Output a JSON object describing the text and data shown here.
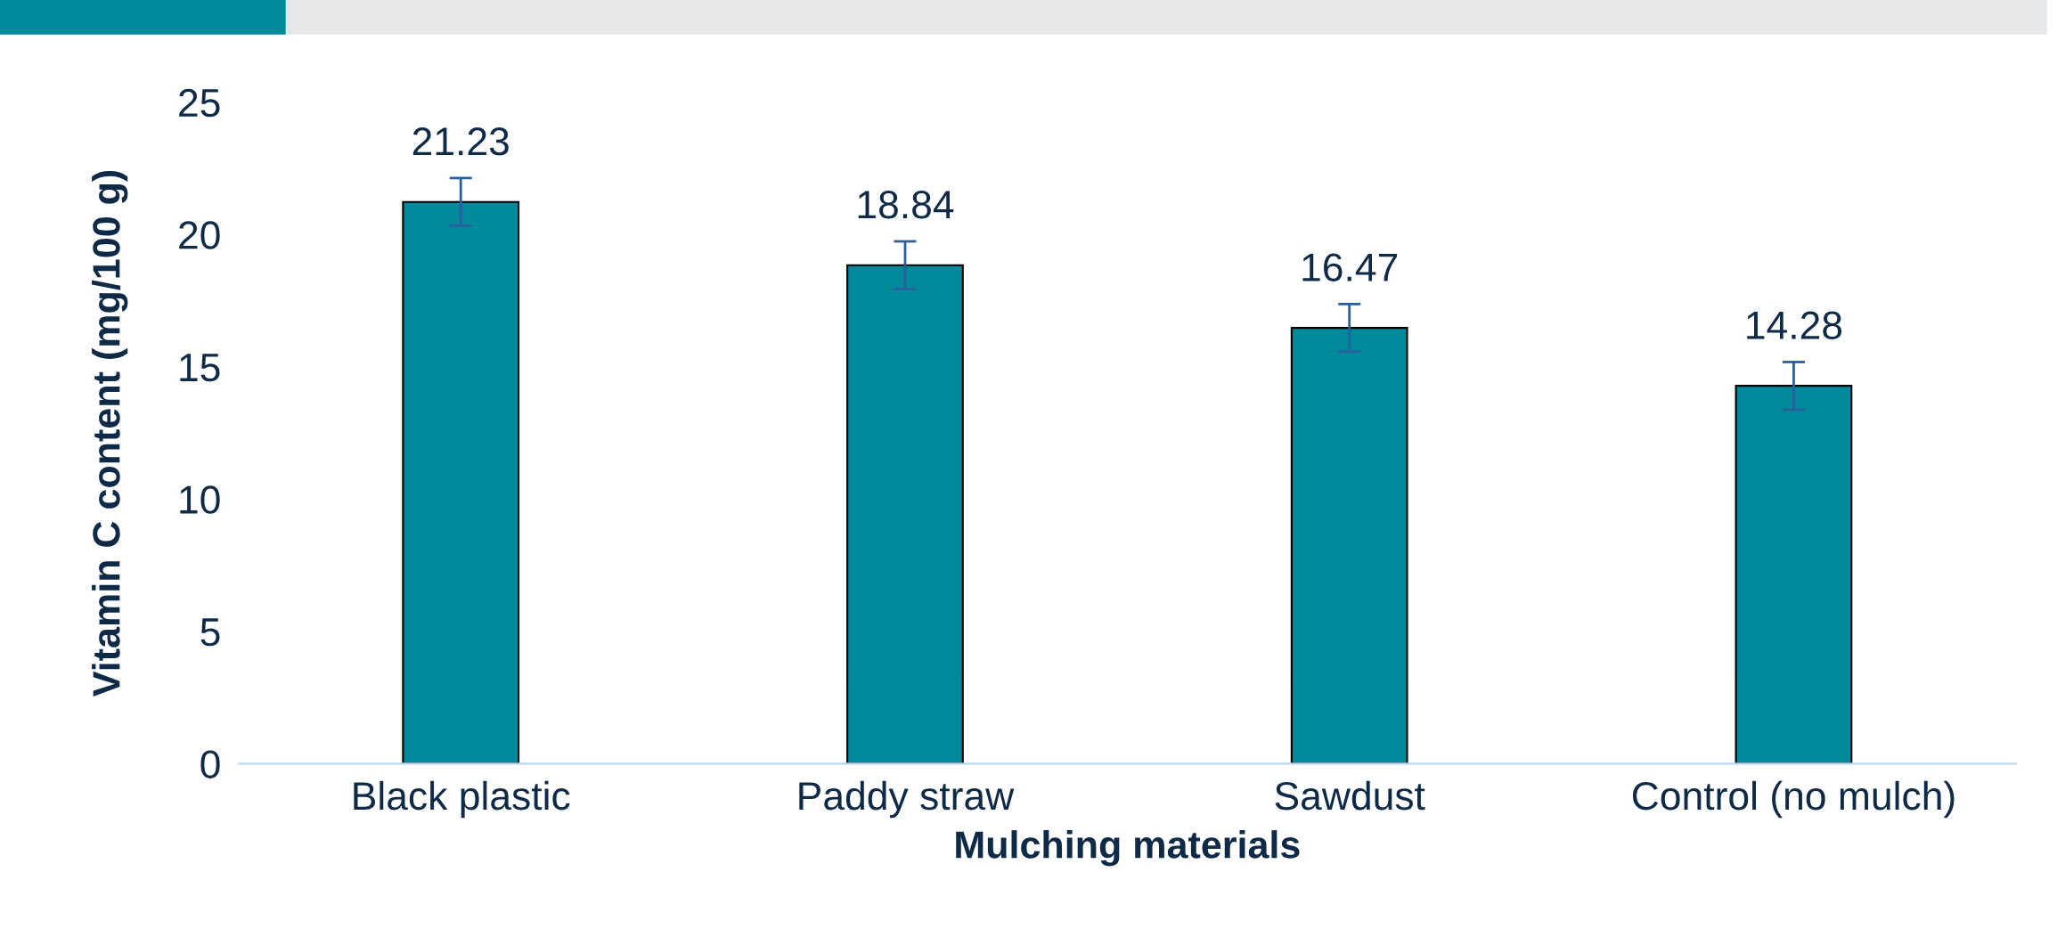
{
  "chart_data": {
    "type": "bar",
    "xlabel": "Mulching materials",
    "ylabel": "Vitamin C content (mg/100 g)",
    "categories": [
      "Black plastic",
      "Paddy straw",
      "Sawdust",
      "Control (no mulch)"
    ],
    "values": [
      21.23,
      18.84,
      16.47,
      14.28
    ],
    "errors": [
      0.9,
      0.9,
      0.9,
      0.9
    ],
    "color": "#00889b",
    "ylim": [
      0,
      25
    ],
    "yticks": [
      0,
      5,
      10,
      15,
      20,
      25
    ],
    "data_labels": true,
    "grid": false
  }
}
